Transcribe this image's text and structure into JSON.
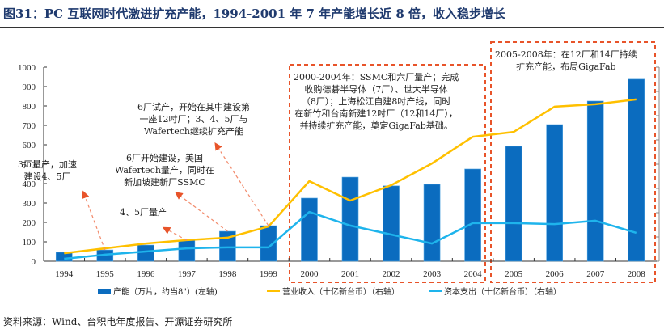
{
  "title": "图31：PC 互联网时代激进扩充产能，1994-2001 年 7 年产能增长近 8 倍，收入稳步增长",
  "source": "资料来源：Wind、台积电年度报告、开源证券研究所",
  "colors": {
    "bar": "#0b6cbf",
    "revenue": "#ffc000",
    "capex": "#1eb4ec",
    "annotation_box": "#e8542a",
    "arrow": "#f28a6b"
  },
  "annotations": {
    "a1": "3厂量产，加速\n建设4、5厂",
    "a2": "6厂开始建设，美国\nWafertech量产，同时在\n新加坡建新厂SSMC",
    "a3": "6厂试产，开始在其中建设第\n一座12吋厂；3、4、5厂与\nWafertech继续扩充产能",
    "a4": "4、5厂量产",
    "box1": "2000-2004年：SSMC和六厂量产；完成\n收购德碁半导体（7厂）、世大半导体\n（8厂）；上海松江自建8吋产线，同时\n在新竹和台南新建12吋厂（12和14厂），\n并持续扩充产能，奠定GigaFab基础。",
    "box2": "2005-2008年：在12厂和14厂持续\n扩充产能，布局GigaFab"
  },
  "chart_data": {
    "type": "bar+line",
    "title": "",
    "categories": [
      "1994",
      "1995",
      "1996",
      "1997",
      "1998",
      "1999",
      "2000",
      "2001",
      "2002",
      "2003",
      "2004",
      "2005",
      "2006",
      "2007",
      "2008"
    ],
    "left_axis": {
      "ylim": [
        0,
        1000
      ],
      "ticks": [
        0,
        100,
        200,
        300,
        400,
        500,
        600,
        700,
        800,
        900,
        1000
      ]
    },
    "right_axis": {
      "note": "tick labels not visible (cropped)",
      "ylim": [
        0,
        8
      ],
      "ticks": [
        0,
        1,
        2,
        3,
        4,
        5,
        6,
        7,
        8
      ]
    },
    "series": [
      {
        "name": "产能（万片，约当8\"）(左轴)",
        "type": "bar",
        "axis": "left",
        "values": [
          46,
          58,
          83,
          108,
          154,
          183,
          325,
          433,
          388,
          396,
          475,
          592,
          704,
          825,
          938
        ]
      },
      {
        "name": "营业收入（十亿新台币）（右轴）",
        "type": "line",
        "axis": "right",
        "values": [
          0.33,
          0.53,
          0.73,
          0.87,
          0.97,
          1.43,
          3.3,
          2.5,
          3.13,
          4.03,
          5.13,
          5.33,
          6.37,
          6.47,
          6.67
        ]
      },
      {
        "name": "资本支出（十亿新台币）（右轴）",
        "type": "line",
        "axis": "right",
        "values": [
          0.1,
          0.27,
          0.4,
          0.53,
          0.57,
          0.57,
          2.03,
          1.47,
          1.1,
          0.73,
          1.57,
          1.57,
          1.53,
          1.67,
          1.17
        ]
      }
    ],
    "legend_position": "bottom",
    "grid": false
  }
}
